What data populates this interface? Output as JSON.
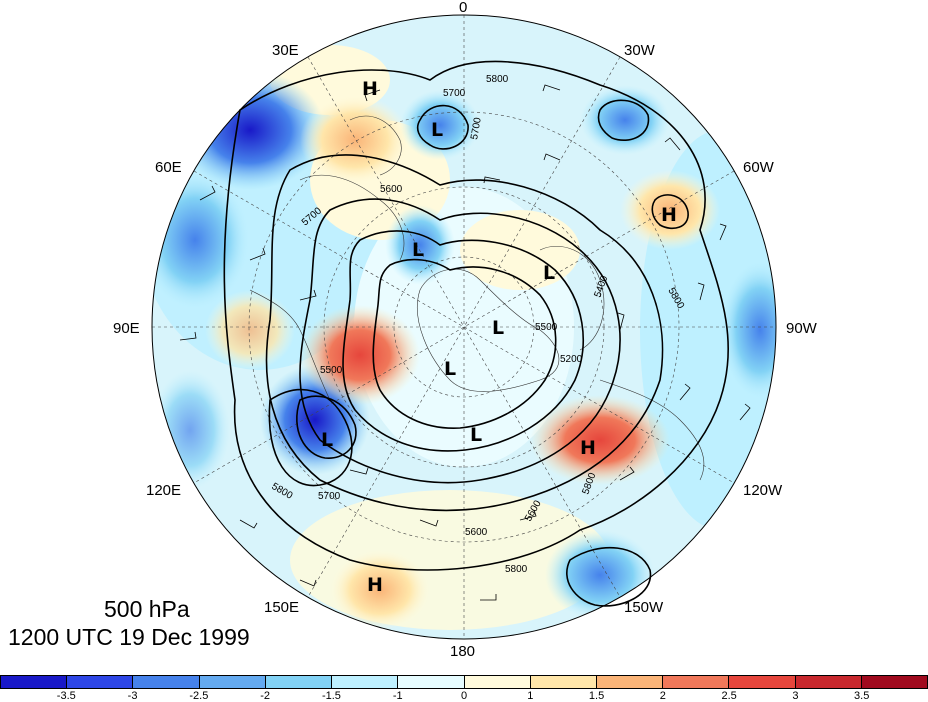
{
  "title": {
    "level": "500 hPa",
    "datetime": "1200 UTC 19 Dec 1999"
  },
  "longitude_labels": {
    "top": "0",
    "top_left": "30E",
    "top_right": "30W",
    "upper_left": "60E",
    "upper_right": "60W",
    "left": "90E",
    "right": "90W",
    "lower_left": "120E",
    "lower_right": "120W",
    "bottom_left": "150E",
    "bottom_right": "150W",
    "bottom": "180"
  },
  "pressure_centers": {
    "L": "L",
    "H": "H"
  },
  "contour_labels": [
    "5800",
    "5700",
    "5700",
    "5600",
    "5700",
    "5500",
    "5600",
    "5800",
    "5700",
    "5600",
    "5800",
    "5800",
    "5500",
    "5800",
    "5400",
    "5200"
  ],
  "colorbar": {
    "colors": [
      "#1919c8",
      "#2d46e6",
      "#4682eb",
      "#64aaf0",
      "#82d2f5",
      "#bef0ff",
      "#e6fcff",
      "#fffadc",
      "#ffe6aa",
      "#fab478",
      "#f0785a",
      "#e6463c",
      "#c8282d",
      "#a00a1e"
    ],
    "tick_labels": [
      "-3.5",
      "-3",
      "-2.5",
      "-2",
      "-1.5",
      "-1",
      "0",
      "1",
      "1.5",
      "2",
      "2.5",
      "3",
      "3.5"
    ]
  }
}
